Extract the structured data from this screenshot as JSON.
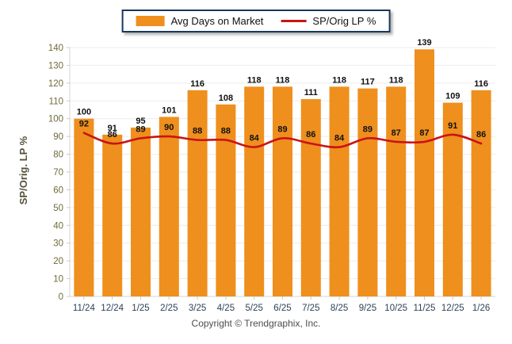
{
  "legend": {
    "bar_label": "Avg Days on Market",
    "line_label": "SP/Orig LP %"
  },
  "footer": {
    "copyright": "Copyright © Trendgraphix, Inc."
  },
  "chart_data": {
    "type": "bar+line",
    "title": "",
    "categories": [
      "11/24",
      "12/24",
      "1/25",
      "2/25",
      "3/25",
      "4/25",
      "5/25",
      "6/25",
      "7/25",
      "8/25",
      "9/25",
      "10/25",
      "11/25",
      "12/25",
      "1/26"
    ],
    "series": [
      {
        "name": "Avg Days on Market",
        "type": "bar",
        "color": "#EF8F1D",
        "values": [
          100,
          91,
          95,
          101,
          116,
          108,
          118,
          118,
          111,
          118,
          117,
          118,
          139,
          109,
          116
        ]
      },
      {
        "name": "SP/Orig LP %",
        "type": "line",
        "color": "#C81414",
        "values": [
          92,
          86,
          89,
          90,
          88,
          88,
          84,
          89,
          86,
          84,
          89,
          87,
          87,
          91,
          86
        ]
      }
    ],
    "xlabel": "",
    "ylabel": "SP/Orig. LP %",
    "ylim": [
      0,
      140
    ],
    "ytick_step": 10,
    "grid": true,
    "legend_position": "top-center",
    "colors": {
      "bar": "#EF8F1D",
      "line": "#C81414",
      "grid": "#ECECEC",
      "axis": "#D6D6D6",
      "tick": "#C9C9C9",
      "x_tick_label": "#2F4157",
      "y_tick_label": "#6F6B3A",
      "value_label": "#111111",
      "legend_border": "#17375E",
      "ylabel_text": "#57513A",
      "copyright_text": "#4d4d4d"
    }
  }
}
